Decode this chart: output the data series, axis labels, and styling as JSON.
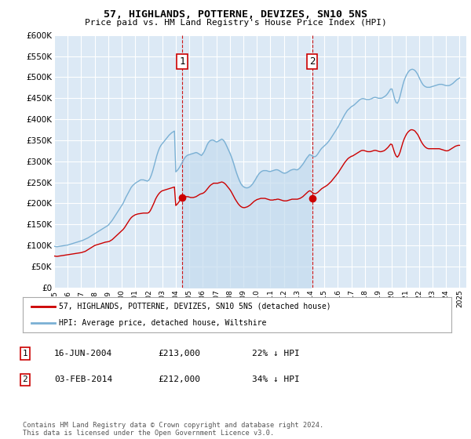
{
  "title": "57, HIGHLANDS, POTTERNE, DEVIZES, SN10 5NS",
  "subtitle": "Price paid vs. HM Land Registry's House Price Index (HPI)",
  "ylim": [
    0,
    600000
  ],
  "yticks": [
    0,
    50000,
    100000,
    150000,
    200000,
    250000,
    300000,
    350000,
    400000,
    450000,
    500000,
    550000,
    600000
  ],
  "ytick_labels": [
    "£0",
    "£50K",
    "£100K",
    "£150K",
    "£200K",
    "£250K",
    "£300K",
    "£350K",
    "£400K",
    "£450K",
    "£500K",
    "£550K",
    "£600K"
  ],
  "background_color": "#ffffff",
  "plot_bg_color": "#dce9f5",
  "grid_color": "#ffffff",
  "red_line_color": "#cc0000",
  "blue_line_color": "#7ab0d4",
  "shade_color": "#c5dcef",
  "marker1_date_x": 2004.46,
  "marker1_price": 213000,
  "marker2_date_x": 2014.09,
  "marker2_price": 212000,
  "legend_red_label": "57, HIGHLANDS, POTTERNE, DEVIZES, SN10 5NS (detached house)",
  "legend_blue_label": "HPI: Average price, detached house, Wiltshire",
  "table_row1": [
    "1",
    "16-JUN-2004",
    "£213,000",
    "22% ↓ HPI"
  ],
  "table_row2": [
    "2",
    "03-FEB-2014",
    "£212,000",
    "34% ↓ HPI"
  ],
  "footer": "Contains HM Land Registry data © Crown copyright and database right 2024.\nThis data is licensed under the Open Government Licence v3.0.",
  "xmin": 1995.0,
  "xmax": 2025.5,
  "hpi_x": [
    1995.0,
    1995.1,
    1995.2,
    1995.3,
    1995.4,
    1995.5,
    1995.6,
    1995.7,
    1995.8,
    1995.9,
    1996.0,
    1996.1,
    1996.2,
    1996.3,
    1996.4,
    1996.5,
    1996.6,
    1996.7,
    1996.8,
    1996.9,
    1997.0,
    1997.1,
    1997.2,
    1997.3,
    1997.4,
    1997.5,
    1997.6,
    1997.7,
    1997.8,
    1997.9,
    1998.0,
    1998.1,
    1998.2,
    1998.3,
    1998.4,
    1998.5,
    1998.6,
    1998.7,
    1998.8,
    1998.9,
    1999.0,
    1999.1,
    1999.2,
    1999.3,
    1999.4,
    1999.5,
    1999.6,
    1999.7,
    1999.8,
    1999.9,
    2000.0,
    2000.1,
    2000.2,
    2000.3,
    2000.4,
    2000.5,
    2000.6,
    2000.7,
    2000.8,
    2000.9,
    2001.0,
    2001.1,
    2001.2,
    2001.3,
    2001.4,
    2001.5,
    2001.6,
    2001.7,
    2001.8,
    2001.9,
    2002.0,
    2002.1,
    2002.2,
    2002.3,
    2002.4,
    2002.5,
    2002.6,
    2002.7,
    2002.8,
    2002.9,
    2003.0,
    2003.1,
    2003.2,
    2003.3,
    2003.4,
    2003.5,
    2003.6,
    2003.7,
    2003.8,
    2003.9,
    2004.0,
    2004.1,
    2004.2,
    2004.3,
    2004.4,
    2004.5,
    2004.6,
    2004.7,
    2004.8,
    2004.9,
    2005.0,
    2005.1,
    2005.2,
    2005.3,
    2005.4,
    2005.5,
    2005.6,
    2005.7,
    2005.8,
    2005.9,
    2006.0,
    2006.1,
    2006.2,
    2006.3,
    2006.4,
    2006.5,
    2006.6,
    2006.7,
    2006.8,
    2006.9,
    2007.0,
    2007.1,
    2007.2,
    2007.3,
    2007.4,
    2007.5,
    2007.6,
    2007.7,
    2007.8,
    2007.9,
    2008.0,
    2008.1,
    2008.2,
    2008.3,
    2008.4,
    2008.5,
    2008.6,
    2008.7,
    2008.8,
    2008.9,
    2009.0,
    2009.1,
    2009.2,
    2009.3,
    2009.4,
    2009.5,
    2009.6,
    2009.7,
    2009.8,
    2009.9,
    2010.0,
    2010.1,
    2010.2,
    2010.3,
    2010.4,
    2010.5,
    2010.6,
    2010.7,
    2010.8,
    2010.9,
    2011.0,
    2011.1,
    2011.2,
    2011.3,
    2011.4,
    2011.5,
    2011.6,
    2011.7,
    2011.8,
    2011.9,
    2012.0,
    2012.1,
    2012.2,
    2012.3,
    2012.4,
    2012.5,
    2012.6,
    2012.7,
    2012.8,
    2012.9,
    2013.0,
    2013.1,
    2013.2,
    2013.3,
    2013.4,
    2013.5,
    2013.6,
    2013.7,
    2013.8,
    2013.9,
    2014.0,
    2014.1,
    2014.2,
    2014.3,
    2014.4,
    2014.5,
    2014.6,
    2014.7,
    2014.8,
    2014.9,
    2015.0,
    2015.1,
    2015.2,
    2015.3,
    2015.4,
    2015.5,
    2015.6,
    2015.7,
    2015.8,
    2015.9,
    2016.0,
    2016.1,
    2016.2,
    2016.3,
    2016.4,
    2016.5,
    2016.6,
    2016.7,
    2016.8,
    2016.9,
    2017.0,
    2017.1,
    2017.2,
    2017.3,
    2017.4,
    2017.5,
    2017.6,
    2017.7,
    2017.8,
    2017.9,
    2018.0,
    2018.1,
    2018.2,
    2018.3,
    2018.4,
    2018.5,
    2018.6,
    2018.7,
    2018.8,
    2018.9,
    2019.0,
    2019.1,
    2019.2,
    2019.3,
    2019.4,
    2019.5,
    2019.6,
    2019.7,
    2019.8,
    2019.9,
    2020.0,
    2020.1,
    2020.2,
    2020.3,
    2020.4,
    2020.5,
    2020.6,
    2020.7,
    2020.8,
    2020.9,
    2021.0,
    2021.1,
    2021.2,
    2021.3,
    2021.4,
    2021.5,
    2021.6,
    2021.7,
    2021.8,
    2021.9,
    2022.0,
    2022.1,
    2022.2,
    2022.3,
    2022.4,
    2022.5,
    2022.6,
    2022.7,
    2022.8,
    2022.9,
    2023.0,
    2023.1,
    2023.2,
    2023.3,
    2023.4,
    2023.5,
    2023.6,
    2023.7,
    2023.8,
    2023.9,
    2024.0,
    2024.1,
    2024.2,
    2024.3,
    2024.4,
    2024.5,
    2024.6,
    2024.7,
    2024.8,
    2024.9,
    2025.0
  ],
  "hpi_y": [
    98000,
    97500,
    97000,
    97500,
    98000,
    98500,
    99000,
    99500,
    100000,
    100500,
    101000,
    102000,
    103000,
    104000,
    105000,
    106000,
    107000,
    108000,
    109000,
    110000,
    111000,
    112000,
    113500,
    115000,
    116500,
    118000,
    120000,
    122000,
    124000,
    126000,
    128000,
    130000,
    132000,
    134000,
    136000,
    138000,
    140000,
    142000,
    144000,
    146000,
    148000,
    152000,
    156000,
    160000,
    165000,
    170000,
    175000,
    180000,
    185000,
    190000,
    195000,
    200000,
    207000,
    214000,
    220000,
    226000,
    232000,
    238000,
    242000,
    245000,
    248000,
    250000,
    252000,
    254000,
    256000,
    256000,
    256000,
    255000,
    254000,
    253000,
    255000,
    260000,
    268000,
    278000,
    290000,
    302000,
    314000,
    324000,
    332000,
    338000,
    342000,
    346000,
    350000,
    354000,
    358000,
    362000,
    365000,
    368000,
    370000,
    372000,
    275000,
    278000,
    282000,
    287000,
    293000,
    299000,
    305000,
    310000,
    313000,
    315000,
    316000,
    317000,
    318000,
    319000,
    320000,
    321000,
    320000,
    318000,
    316000,
    314000,
    318000,
    323000,
    330000,
    338000,
    344000,
    348000,
    350000,
    351000,
    350000,
    348000,
    346000,
    347000,
    349000,
    351000,
    353000,
    351000,
    347000,
    341000,
    334000,
    327000,
    320000,
    312000,
    303000,
    293000,
    282000,
    272000,
    263000,
    255000,
    248000,
    243000,
    240000,
    238000,
    237000,
    237000,
    238000,
    240000,
    243000,
    247000,
    252000,
    257000,
    263000,
    268000,
    272000,
    275000,
    277000,
    278000,
    278000,
    278000,
    277000,
    276000,
    276000,
    277000,
    278000,
    279000,
    280000,
    280000,
    279000,
    277000,
    275000,
    273000,
    272000,
    272000,
    273000,
    275000,
    277000,
    279000,
    280000,
    281000,
    281000,
    280000,
    280000,
    282000,
    285000,
    289000,
    293000,
    298000,
    303000,
    308000,
    312000,
    316000,
    315000,
    313000,
    311000,
    311000,
    313000,
    317000,
    322000,
    327000,
    331000,
    334000,
    337000,
    340000,
    343000,
    347000,
    351000,
    356000,
    361000,
    366000,
    371000,
    376000,
    381000,
    387000,
    393000,
    399000,
    405000,
    411000,
    416000,
    421000,
    424000,
    427000,
    430000,
    432000,
    434000,
    437000,
    440000,
    443000,
    446000,
    448000,
    449000,
    449000,
    448000,
    447000,
    447000,
    447000,
    448000,
    449000,
    451000,
    452000,
    452000,
    451000,
    450000,
    450000,
    450000,
    451000,
    453000,
    455000,
    458000,
    462000,
    467000,
    472000,
    472000,
    460000,
    448000,
    440000,
    438000,
    444000,
    455000,
    468000,
    481000,
    492000,
    500000,
    507000,
    512000,
    516000,
    518000,
    519000,
    518000,
    516000,
    512000,
    507000,
    500000,
    493000,
    487000,
    482000,
    479000,
    477000,
    476000,
    476000,
    476000,
    477000,
    478000,
    479000,
    480000,
    481000,
    482000,
    483000,
    483000,
    483000,
    482000,
    481000,
    480000,
    480000,
    480000,
    481000,
    483000,
    485000,
    488000,
    491000,
    494000,
    496000,
    498000
  ],
  "price_x": [
    1995.0,
    1995.1,
    1995.2,
    1995.3,
    1995.4,
    1995.5,
    1995.6,
    1995.7,
    1995.8,
    1995.9,
    1996.0,
    1996.1,
    1996.2,
    1996.3,
    1996.4,
    1996.5,
    1996.6,
    1996.7,
    1996.8,
    1996.9,
    1997.0,
    1997.1,
    1997.2,
    1997.3,
    1997.4,
    1997.5,
    1997.6,
    1997.7,
    1997.8,
    1997.9,
    1998.0,
    1998.1,
    1998.2,
    1998.3,
    1998.4,
    1998.5,
    1998.6,
    1998.7,
    1998.8,
    1998.9,
    1999.0,
    1999.1,
    1999.2,
    1999.3,
    1999.4,
    1999.5,
    1999.6,
    1999.7,
    1999.8,
    1999.9,
    2000.0,
    2000.1,
    2000.2,
    2000.3,
    2000.4,
    2000.5,
    2000.6,
    2000.7,
    2000.8,
    2000.9,
    2001.0,
    2001.1,
    2001.2,
    2001.3,
    2001.4,
    2001.5,
    2001.6,
    2001.7,
    2001.8,
    2001.9,
    2002.0,
    2002.1,
    2002.2,
    2002.3,
    2002.4,
    2002.5,
    2002.6,
    2002.7,
    2002.8,
    2002.9,
    2003.0,
    2003.1,
    2003.2,
    2003.3,
    2003.4,
    2003.5,
    2003.6,
    2003.7,
    2003.8,
    2003.9,
    2004.0,
    2004.1,
    2004.2,
    2004.3,
    2004.4,
    2004.5,
    2004.6,
    2004.7,
    2004.8,
    2004.9,
    2005.0,
    2005.1,
    2005.2,
    2005.3,
    2005.4,
    2005.5,
    2005.6,
    2005.7,
    2005.8,
    2005.9,
    2006.0,
    2006.1,
    2006.2,
    2006.3,
    2006.4,
    2006.5,
    2006.6,
    2006.7,
    2006.8,
    2006.9,
    2007.0,
    2007.1,
    2007.2,
    2007.3,
    2007.4,
    2007.5,
    2007.6,
    2007.7,
    2007.8,
    2007.9,
    2008.0,
    2008.1,
    2008.2,
    2008.3,
    2008.4,
    2008.5,
    2008.6,
    2008.7,
    2008.8,
    2008.9,
    2009.0,
    2009.1,
    2009.2,
    2009.3,
    2009.4,
    2009.5,
    2009.6,
    2009.7,
    2009.8,
    2009.9,
    2010.0,
    2010.1,
    2010.2,
    2010.3,
    2010.4,
    2010.5,
    2010.6,
    2010.7,
    2010.8,
    2010.9,
    2011.0,
    2011.1,
    2011.2,
    2011.3,
    2011.4,
    2011.5,
    2011.6,
    2011.7,
    2011.8,
    2011.9,
    2012.0,
    2012.1,
    2012.2,
    2012.3,
    2012.4,
    2012.5,
    2012.6,
    2012.7,
    2012.8,
    2012.9,
    2013.0,
    2013.1,
    2013.2,
    2013.3,
    2013.4,
    2013.5,
    2013.6,
    2013.7,
    2013.8,
    2013.9,
    2014.0,
    2014.1,
    2014.2,
    2014.3,
    2014.4,
    2014.5,
    2014.6,
    2014.7,
    2014.8,
    2014.9,
    2015.0,
    2015.1,
    2015.2,
    2015.3,
    2015.4,
    2015.5,
    2015.6,
    2015.7,
    2015.8,
    2015.9,
    2016.0,
    2016.1,
    2016.2,
    2016.3,
    2016.4,
    2016.5,
    2016.6,
    2016.7,
    2016.8,
    2016.9,
    2017.0,
    2017.1,
    2017.2,
    2017.3,
    2017.4,
    2017.5,
    2017.6,
    2017.7,
    2017.8,
    2017.9,
    2018.0,
    2018.1,
    2018.2,
    2018.3,
    2018.4,
    2018.5,
    2018.6,
    2018.7,
    2018.8,
    2018.9,
    2019.0,
    2019.1,
    2019.2,
    2019.3,
    2019.4,
    2019.5,
    2019.6,
    2019.7,
    2019.8,
    2019.9,
    2020.0,
    2020.1,
    2020.2,
    2020.3,
    2020.4,
    2020.5,
    2020.6,
    2020.7,
    2020.8,
    2020.9,
    2021.0,
    2021.1,
    2021.2,
    2021.3,
    2021.4,
    2021.5,
    2021.6,
    2021.7,
    2021.8,
    2021.9,
    2022.0,
    2022.1,
    2022.2,
    2022.3,
    2022.4,
    2022.5,
    2022.6,
    2022.7,
    2022.8,
    2022.9,
    2023.0,
    2023.1,
    2023.2,
    2023.3,
    2023.4,
    2023.5,
    2023.6,
    2023.7,
    2023.8,
    2023.9,
    2024.0,
    2024.1,
    2024.2,
    2024.3,
    2024.4,
    2024.5,
    2024.6,
    2024.7,
    2024.8,
    2024.9,
    2025.0
  ],
  "price_y": [
    75000,
    74500,
    74000,
    74500,
    75000,
    75500,
    76000,
    76500,
    77000,
    77500,
    78000,
    78500,
    79000,
    79500,
    80000,
    80500,
    81000,
    81500,
    82000,
    82500,
    83000,
    84000,
    85000,
    86000,
    88000,
    90000,
    92000,
    94000,
    96000,
    98000,
    100000,
    101000,
    102000,
    103000,
    104000,
    105000,
    106000,
    107000,
    108000,
    108500,
    109000,
    110000,
    112000,
    114000,
    117000,
    120000,
    123000,
    126000,
    129000,
    132000,
    135000,
    138000,
    142000,
    147000,
    152000,
    157000,
    162000,
    166000,
    169000,
    171000,
    173000,
    174000,
    175000,
    175500,
    176000,
    176500,
    177000,
    177000,
    177000,
    177000,
    178000,
    182000,
    188000,
    195000,
    202000,
    210000,
    216000,
    221000,
    225000,
    228000,
    230000,
    231000,
    232000,
    233000,
    234000,
    235000,
    236000,
    237000,
    238000,
    239000,
    195000,
    198000,
    202000,
    207000,
    211000,
    213000,
    215000,
    216000,
    216000,
    216000,
    215000,
    214000,
    214000,
    214000,
    215000,
    216000,
    218000,
    220000,
    222000,
    223000,
    224000,
    226000,
    229000,
    233000,
    237000,
    241000,
    244000,
    246000,
    248000,
    248000,
    248000,
    248000,
    249000,
    250000,
    251000,
    250000,
    248000,
    245000,
    241000,
    237000,
    233000,
    228000,
    222000,
    216000,
    210000,
    205000,
    200000,
    196000,
    193000,
    191000,
    190000,
    190000,
    191000,
    192000,
    194000,
    196000,
    199000,
    202000,
    205000,
    207000,
    209000,
    210000,
    211000,
    212000,
    212000,
    212000,
    212000,
    211000,
    210000,
    209000,
    208000,
    208000,
    208000,
    209000,
    209000,
    210000,
    210000,
    209000,
    208000,
    207000,
    206000,
    206000,
    206000,
    207000,
    208000,
    209000,
    210000,
    210000,
    210000,
    210000,
    210000,
    211000,
    212000,
    214000,
    216000,
    219000,
    222000,
    225000,
    228000,
    230000,
    229000,
    226000,
    224000,
    223000,
    224000,
    226000,
    229000,
    232000,
    235000,
    237000,
    239000,
    241000,
    243000,
    246000,
    249000,
    252000,
    256000,
    260000,
    264000,
    268000,
    272000,
    277000,
    282000,
    287000,
    292000,
    297000,
    301000,
    305000,
    308000,
    310000,
    312000,
    313000,
    315000,
    317000,
    319000,
    321000,
    323000,
    325000,
    326000,
    326000,
    325000,
    324000,
    323000,
    323000,
    323000,
    324000,
    325000,
    326000,
    326000,
    325000,
    324000,
    323000,
    323000,
    324000,
    325000,
    327000,
    330000,
    333000,
    337000,
    341000,
    340000,
    330000,
    320000,
    313000,
    310000,
    314000,
    322000,
    333000,
    344000,
    353000,
    360000,
    366000,
    370000,
    373000,
    375000,
    375000,
    374000,
    372000,
    368000,
    364000,
    358000,
    351000,
    345000,
    340000,
    336000,
    333000,
    331000,
    330000,
    330000,
    330000,
    330000,
    330000,
    330000,
    330000,
    330000,
    330000,
    329000,
    328000,
    327000,
    326000,
    325000,
    325000,
    326000,
    328000,
    330000,
    332000,
    334000,
    336000,
    337000,
    338000,
    338000
  ]
}
